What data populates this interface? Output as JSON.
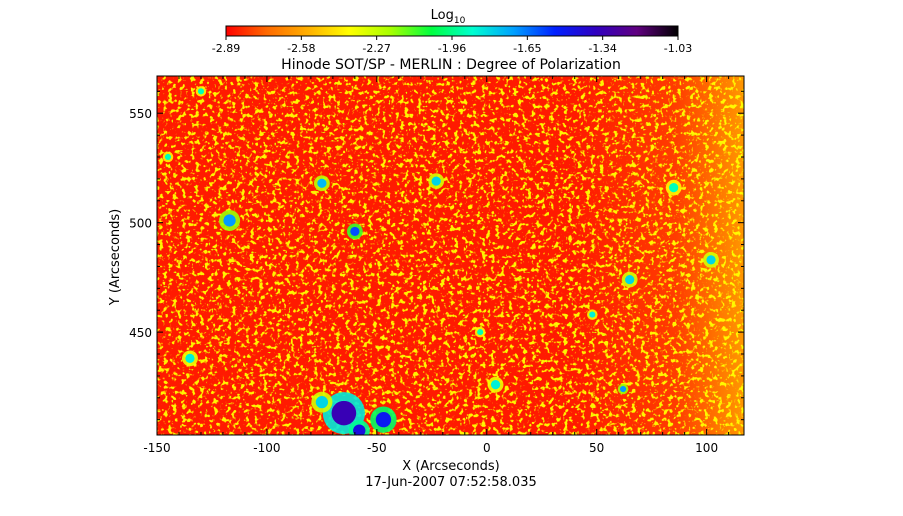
{
  "colorbar": {
    "label_main": "Log",
    "label_sub": "10",
    "ticks": [
      "-2.89",
      "-2.58",
      "-2.27",
      "-1.96",
      "-1.65",
      "-1.34",
      "-1.03"
    ],
    "range": [
      -2.89,
      -1.03
    ],
    "colors": [
      "#ff0000",
      "#ff6a00",
      "#ffb000",
      "#ffff00",
      "#a8ff00",
      "#00ff40",
      "#00ffd0",
      "#00a0ff",
      "#0020ff",
      "#3000c0",
      "#600080",
      "#000000"
    ]
  },
  "timestamp": "17-Jun-2007 07:52:58.035",
  "chart_data": {
    "type": "heatmap",
    "title": "Hinode SOT/SP - MERLIN : Degree of Polarization",
    "xlabel": "X (Arcseconds)",
    "ylabel": "Y (Arcseconds)",
    "xlim": [
      -150,
      117
    ],
    "ylim": [
      403,
      567
    ],
    "xticks": [
      -150,
      -100,
      -50,
      0,
      50,
      100
    ],
    "xtick_labels": [
      "-150",
      "-100",
      "-50",
      "0",
      "50",
      "100"
    ],
    "yticks": [
      450,
      500,
      550
    ],
    "ytick_labels": [
      "450",
      "500",
      "550"
    ],
    "value_scale": "log10",
    "value_range": [
      -2.89,
      -1.03
    ],
    "background_level": -2.89,
    "right_edge_level": -2.5,
    "patches": [
      {
        "x": -65,
        "y": 413,
        "r": 8,
        "value": -1.34
      },
      {
        "x": -47,
        "y": 410,
        "r": 5,
        "value": -1.5
      },
      {
        "x": -58,
        "y": 405,
        "r": 4,
        "value": -1.45
      },
      {
        "x": -75,
        "y": 418,
        "r": 4,
        "value": -1.8
      },
      {
        "x": -117,
        "y": 501,
        "r": 4,
        "value": -1.7
      },
      {
        "x": -75,
        "y": 518,
        "r": 3,
        "value": -1.75
      },
      {
        "x": -60,
        "y": 496,
        "r": 3,
        "value": -1.6
      },
      {
        "x": -23,
        "y": 519,
        "r": 3,
        "value": -1.8
      },
      {
        "x": -135,
        "y": 438,
        "r": 3,
        "value": -1.85
      },
      {
        "x": 65,
        "y": 474,
        "r": 3,
        "value": -1.8
      },
      {
        "x": 102,
        "y": 483,
        "r": 3,
        "value": -1.8
      },
      {
        "x": 85,
        "y": 516,
        "r": 3,
        "value": -1.9
      },
      {
        "x": 4,
        "y": 426,
        "r": 3,
        "value": -1.85
      },
      {
        "x": 62,
        "y": 424,
        "r": 2,
        "value": -1.7
      },
      {
        "x": -3,
        "y": 450,
        "r": 2,
        "value": -1.9
      },
      {
        "x": 48,
        "y": 458,
        "r": 2,
        "value": -1.85
      },
      {
        "x": -145,
        "y": 530,
        "r": 2,
        "value": -1.9
      },
      {
        "x": -130,
        "y": 560,
        "r": 2,
        "value": -1.9
      }
    ]
  }
}
